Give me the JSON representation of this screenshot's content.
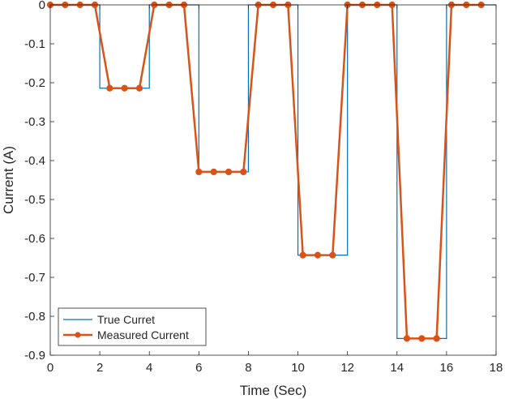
{
  "chart_data": {
    "type": "line",
    "xlabel": "Time (Sec)",
    "ylabel": "Current (A)",
    "xlim": [
      0,
      18
    ],
    "ylim": [
      -0.9,
      0
    ],
    "xticks": [
      0,
      2,
      4,
      6,
      8,
      10,
      12,
      14,
      16,
      18
    ],
    "yticks": [
      0,
      -0.1,
      -0.2,
      -0.3,
      -0.4,
      -0.5,
      -0.6,
      -0.7,
      -0.8,
      -0.9
    ],
    "grid": false,
    "legend_position": "bottom-left",
    "series": [
      {
        "name": "True Curret",
        "color": "#0072BD",
        "style": "step",
        "x": [
          0,
          2,
          2,
          4,
          4,
          6,
          6,
          8,
          8,
          10,
          10,
          12,
          12,
          14,
          14,
          16,
          16,
          18
        ],
        "y": [
          0,
          0,
          -0.214,
          -0.214,
          0,
          0,
          -0.429,
          -0.429,
          0,
          0,
          -0.643,
          -0.643,
          0,
          0,
          -0.857,
          -0.857,
          0,
          0
        ]
      },
      {
        "name": "Measured Current",
        "color": "#D95319",
        "style": "line-marker",
        "x": [
          0,
          0.6,
          1.2,
          1.8,
          2.4,
          3.0,
          3.6,
          4.2,
          4.8,
          5.4,
          6.0,
          6.6,
          7.2,
          7.8,
          8.4,
          9.0,
          9.6,
          10.2,
          10.8,
          11.4,
          12.0,
          12.6,
          13.2,
          13.8,
          14.4,
          15.0,
          15.6,
          16.2,
          16.8,
          17.4
        ],
        "y": [
          0,
          0,
          0,
          0,
          -0.214,
          -0.214,
          -0.214,
          0,
          0,
          0,
          -0.429,
          -0.429,
          -0.429,
          -0.429,
          0,
          0,
          0,
          -0.643,
          -0.643,
          -0.643,
          0,
          0,
          0,
          0,
          -0.857,
          -0.857,
          -0.857,
          0,
          0,
          0
        ]
      }
    ]
  }
}
